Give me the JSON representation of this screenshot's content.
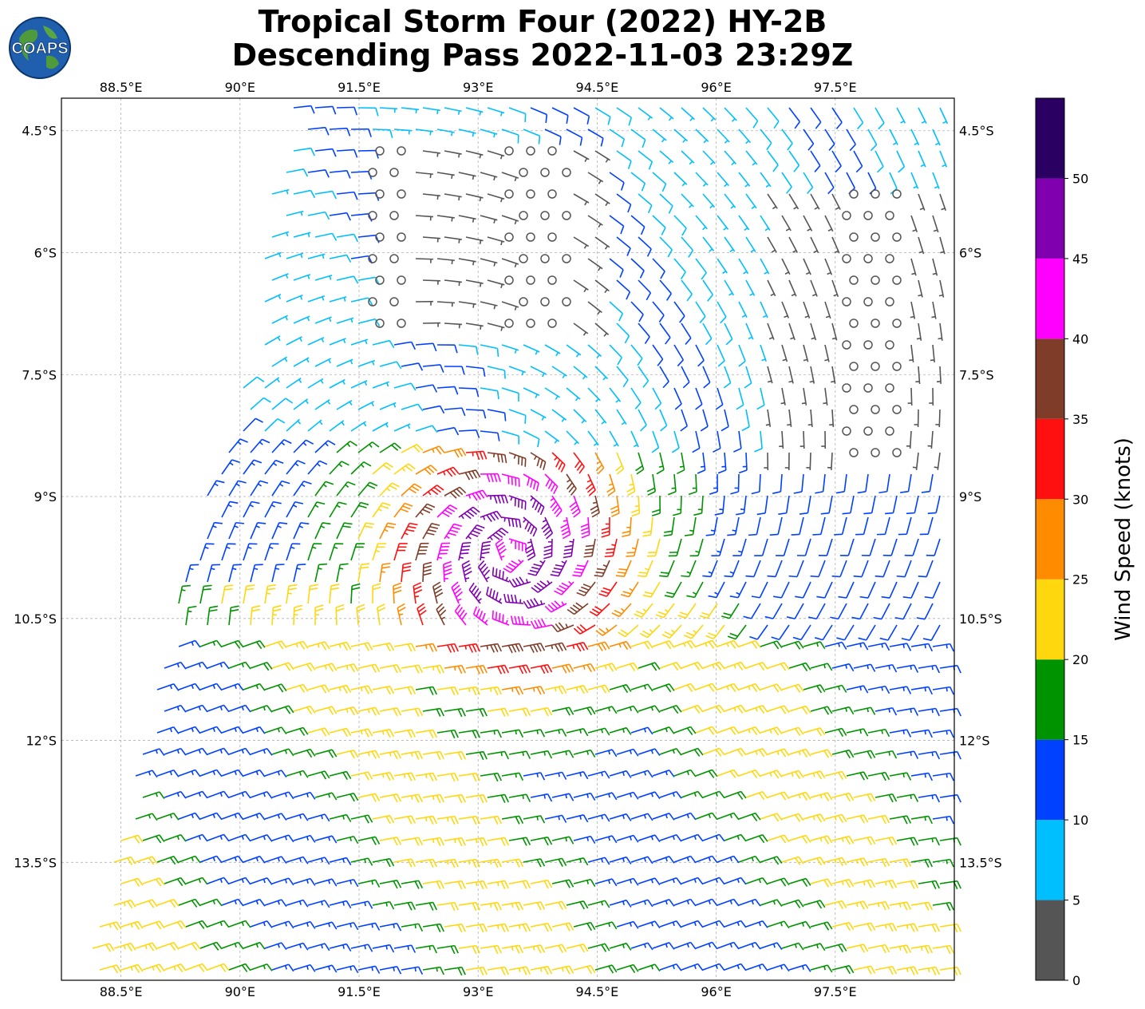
{
  "title_line1": "Tropical Storm Four (2022) HY-2B",
  "title_line2": "Descending Pass 2022-11-03 23:29Z",
  "logo_text": "COAPS",
  "map": {
    "lon_range": [
      87.75,
      99.0
    ],
    "lat_range": [
      -14.95,
      -4.1
    ],
    "lon_ticks": [
      "88.5°E",
      "90°E",
      "91.5°E",
      "93°E",
      "94.5°E",
      "96°E",
      "97.5°E"
    ],
    "lon_tick_values": [
      88.5,
      90,
      91.5,
      93,
      94.5,
      96,
      97.5
    ],
    "lat_ticks": [
      "4.5°S",
      "6°S",
      "7.5°S",
      "9°S",
      "10.5°S",
      "12°S",
      "13.5°S"
    ],
    "lat_tick_values": [
      -4.5,
      -6,
      -7.5,
      -9,
      -10.5,
      -12,
      -13.5
    ],
    "storm_center": {
      "lon": 93.4,
      "lat": -9.7
    },
    "grid": true
  },
  "colorbar": {
    "label": "Wind Speed (knots)",
    "ticks": [
      "0",
      "5",
      "10",
      "15",
      "20",
      "25",
      "30",
      "35",
      "40",
      "45",
      "50"
    ],
    "tick_values": [
      0,
      5,
      10,
      15,
      20,
      25,
      30,
      35,
      40,
      45,
      50
    ],
    "range": [
      0,
      55
    ],
    "bins": [
      {
        "min": 0,
        "max": 5,
        "color": "#555555"
      },
      {
        "min": 5,
        "max": 10,
        "color": "#00bfff"
      },
      {
        "min": 10,
        "max": 15,
        "color": "#0040ff"
      },
      {
        "min": 15,
        "max": 20,
        "color": "#009300"
      },
      {
        "min": 20,
        "max": 25,
        "color": "#ffd70f"
      },
      {
        "min": 25,
        "max": 30,
        "color": "#ff8c00"
      },
      {
        "min": 30,
        "max": 35,
        "color": "#ff1010"
      },
      {
        "min": 35,
        "max": 40,
        "color": "#7f3c28"
      },
      {
        "min": 40,
        "max": 45,
        "color": "#ff00ff"
      },
      {
        "min": 45,
        "max": 50,
        "color": "#8000b0"
      },
      {
        "min": 50,
        "max": 55,
        "color": "#2a0062"
      }
    ]
  }
}
